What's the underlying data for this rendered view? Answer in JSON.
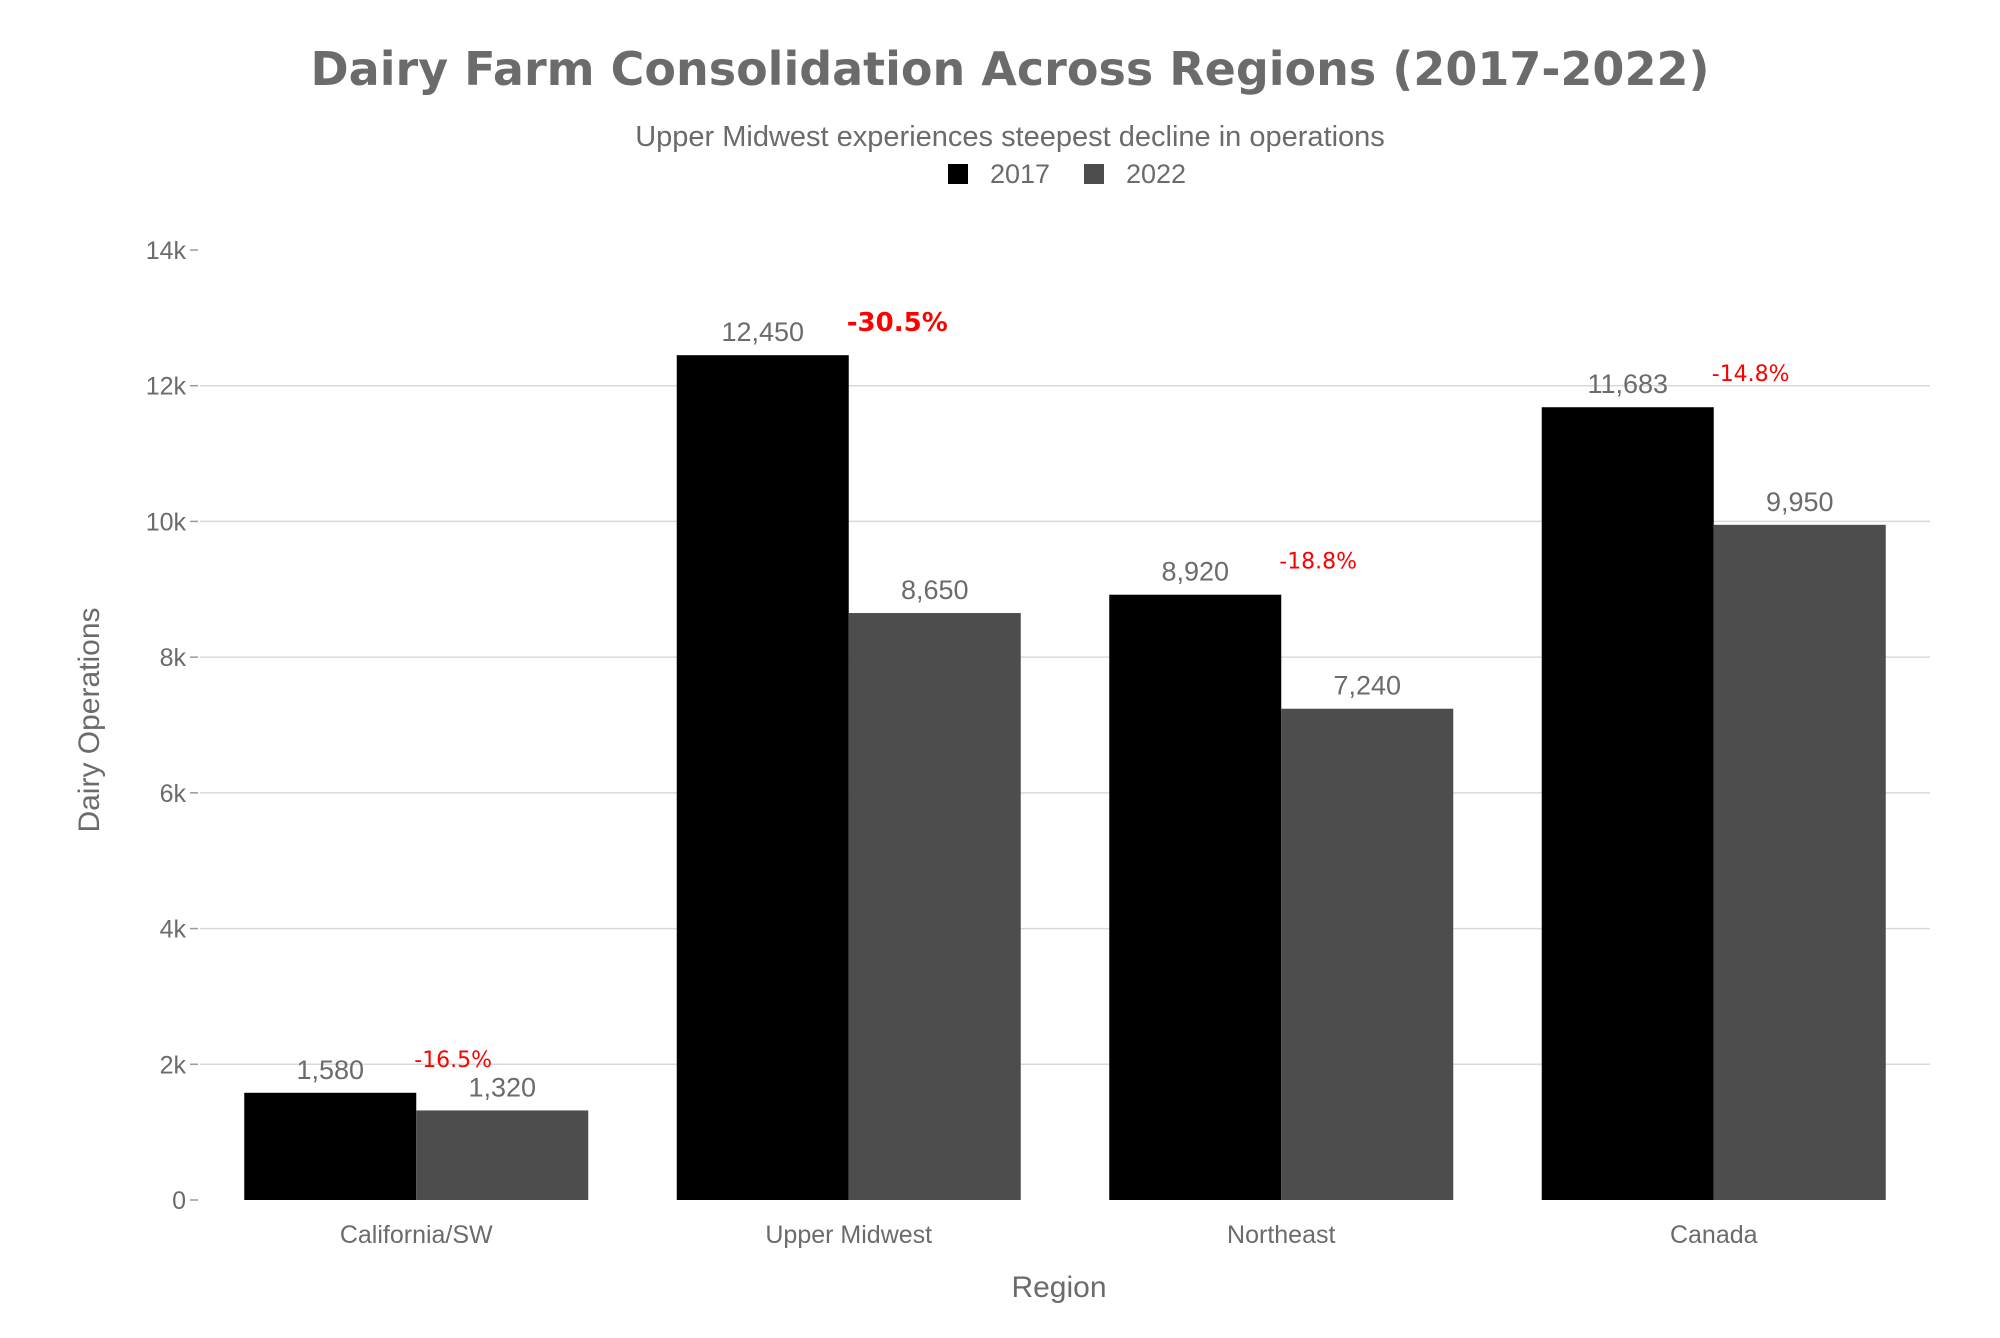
{
  "chart_data": {
    "type": "bar",
    "title": "Dairy Farm Consolidation Across Regions (2017-2022)",
    "subtitle": "Upper Midwest experiences steepest decline in operations",
    "xlabel": "Region",
    "ylabel": "Dairy Operations",
    "categories": [
      "California/SW",
      "Upper Midwest",
      "Northeast",
      "Canada"
    ],
    "series": [
      {
        "name": "2017",
        "color": "#000000",
        "values": [
          1580,
          12450,
          8920,
          11683
        ],
        "labels": [
          "1,580",
          "12,450",
          "8,920",
          "11,683"
        ]
      },
      {
        "name": "2022",
        "color": "#4d4d4d",
        "values": [
          1320,
          8650,
          7240,
          9950
        ],
        "labels": [
          "1,320",
          "8,650",
          "7,240",
          "9,950"
        ]
      }
    ],
    "change_labels": [
      "-16.5%",
      "-30.5%",
      "-18.8%",
      "-14.8%"
    ],
    "change_emphasis": [
      false,
      true,
      false,
      false
    ],
    "change_color": "#ff0000",
    "ylim": [
      0,
      14000
    ],
    "yticks": [
      0,
      2000,
      4000,
      6000,
      8000,
      10000,
      12000,
      14000
    ],
    "ytick_labels": [
      "0",
      "2k",
      "4k",
      "6k",
      "8k",
      "10k",
      "12k",
      "14k"
    ],
    "grid": true,
    "legend_position": "top-center"
  }
}
